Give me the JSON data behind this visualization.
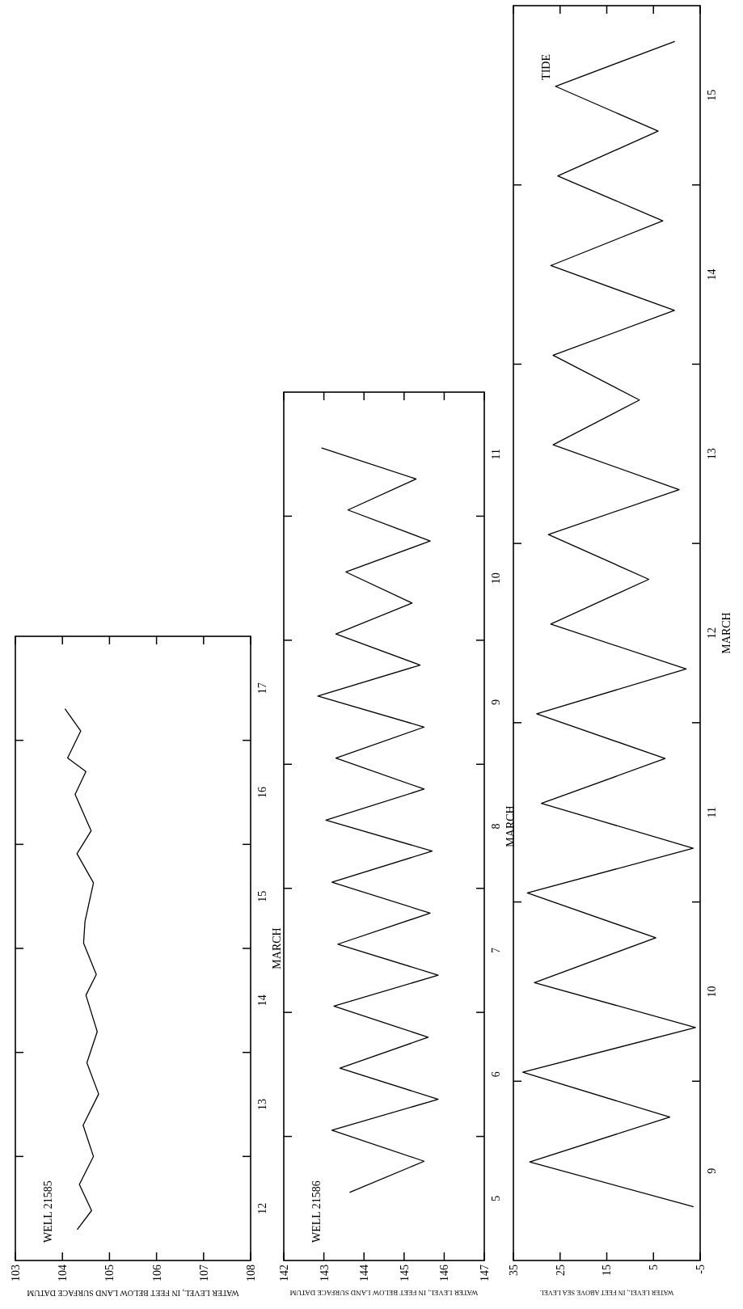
{
  "chart_data": [
    {
      "type": "line",
      "title": "WELL 21585",
      "xlabel": "WATER LEVEL, IN FEET BELOW LAND SURFACE DATUM",
      "ylabel": "MARCH",
      "xlim": [
        103,
        108
      ],
      "ylim": [
        12,
        18
      ],
      "xticks": [
        103,
        104,
        105,
        106,
        107,
        108
      ],
      "yticks": [
        {
          "value": 12.5,
          "label": "12"
        },
        {
          "value": 13,
          "label": null
        },
        {
          "value": 13.5,
          "label": "13"
        },
        {
          "value": 14,
          "label": null
        },
        {
          "value": 14.5,
          "label": "14"
        },
        {
          "value": 15,
          "label": null
        },
        {
          "value": 15.5,
          "label": "15"
        },
        {
          "value": 16,
          "label": null
        },
        {
          "value": 16.5,
          "label": "16"
        },
        {
          "value": 17,
          "label": null
        },
        {
          "value": 17.5,
          "label": "17"
        }
      ],
      "series": [
        {
          "color": "#000000",
          "x": [
            104.32,
            104.62,
            104.36,
            104.66,
            104.44,
            104.77,
            104.52,
            104.74,
            104.5,
            104.72,
            104.45,
            104.48,
            104.66,
            104.31,
            104.61,
            104.27,
            104.5,
            104.11,
            104.39,
            104.06
          ],
          "values": [
            12.3,
            12.48,
            12.73,
            13.0,
            13.3,
            13.6,
            13.9,
            14.2,
            14.55,
            14.75,
            15.05,
            15.26,
            15.63,
            15.91,
            16.13,
            16.48,
            16.7,
            16.83,
            17.09,
            17.3
          ]
        }
      ]
    },
    {
      "type": "line",
      "title": "WELL 21586",
      "xlabel": "WATER LEVEL, IN FEET BELOW LAND SURFACE DATUM",
      "ylabel": "MARCH",
      "xlim": [
        142,
        147
      ],
      "ylim": [
        5,
        12
      ],
      "xticks": [
        142,
        143,
        144,
        145,
        146,
        147
      ],
      "yticks": [
        {
          "value": 5.5,
          "label": "5"
        },
        {
          "value": 6,
          "label": null
        },
        {
          "value": 6.5,
          "label": "6"
        },
        {
          "value": 7,
          "label": null
        },
        {
          "value": 7.5,
          "label": "7"
        },
        {
          "value": 8,
          "label": null
        },
        {
          "value": 8.5,
          "label": "8"
        },
        {
          "value": 9,
          "label": null
        },
        {
          "value": 9.5,
          "label": "9"
        },
        {
          "value": 10,
          "label": null
        },
        {
          "value": 10.5,
          "label": "10"
        },
        {
          "value": 11,
          "label": null
        },
        {
          "value": 11.5,
          "label": "11"
        }
      ],
      "series": [
        {
          "color": "#000000",
          "x": [
            143.65,
            145.5,
            143.2,
            145.85,
            143.4,
            145.6,
            143.25,
            145.85,
            143.35,
            145.65,
            143.2,
            145.7,
            143.05,
            145.5,
            143.3,
            145.5,
            142.85,
            145.4,
            143.3,
            145.2,
            143.55,
            145.65,
            143.6,
            145.3,
            142.95
          ],
          "values": [
            5.55,
            5.8,
            6.05,
            6.3,
            6.55,
            6.8,
            7.05,
            7.3,
            7.55,
            7.8,
            8.05,
            8.3,
            8.55,
            8.8,
            9.05,
            9.3,
            9.55,
            9.8,
            10.05,
            10.3,
            10.55,
            10.8,
            11.05,
            11.3,
            11.55
          ]
        }
      ]
    },
    {
      "type": "line",
      "title": "TIDE",
      "xlabel": "WATER LEVEL, IN FEET ABOVE SEA LEVEL",
      "ylabel": "MARCH",
      "xlim": [
        35,
        -5
      ],
      "ylim": [
        9,
        16
      ],
      "xticks": [
        35,
        25,
        15,
        5,
        -5
      ],
      "yticks": [
        {
          "value": 9.5,
          "label": "9"
        },
        {
          "value": 10,
          "label": null
        },
        {
          "value": 10.5,
          "label": "10"
        },
        {
          "value": 11,
          "label": null
        },
        {
          "value": 11.5,
          "label": "11"
        },
        {
          "value": 12,
          "label": null
        },
        {
          "value": 12.5,
          "label": "12"
        },
        {
          "value": 13,
          "label": null
        },
        {
          "value": 13.5,
          "label": "13"
        },
        {
          "value": 14,
          "label": null
        },
        {
          "value": 14.5,
          "label": "14"
        },
        {
          "value": 15,
          "label": null
        },
        {
          "value": 15.5,
          "label": "15"
        }
      ],
      "series": [
        {
          "color": "#000000",
          "x": [
            -3.5,
            31.5,
            1.5,
            33,
            -4,
            30.5,
            4.5,
            32,
            -3.5,
            29,
            2.5,
            30,
            -2,
            27,
            6,
            27.5,
            -0.5,
            26.5,
            8,
            26.5,
            0.5,
            27,
            3,
            25.5,
            4,
            26,
            0.5
          ],
          "values": [
            9.3,
            9.55,
            9.8,
            10.05,
            10.3,
            10.55,
            10.8,
            11.05,
            11.3,
            11.55,
            11.8,
            12.05,
            12.3,
            12.55,
            12.8,
            13.05,
            13.3,
            13.55,
            13.8,
            14.05,
            14.3,
            14.55,
            14.8,
            15.05,
            15.3,
            15.55,
            15.8
          ]
        }
      ]
    }
  ]
}
